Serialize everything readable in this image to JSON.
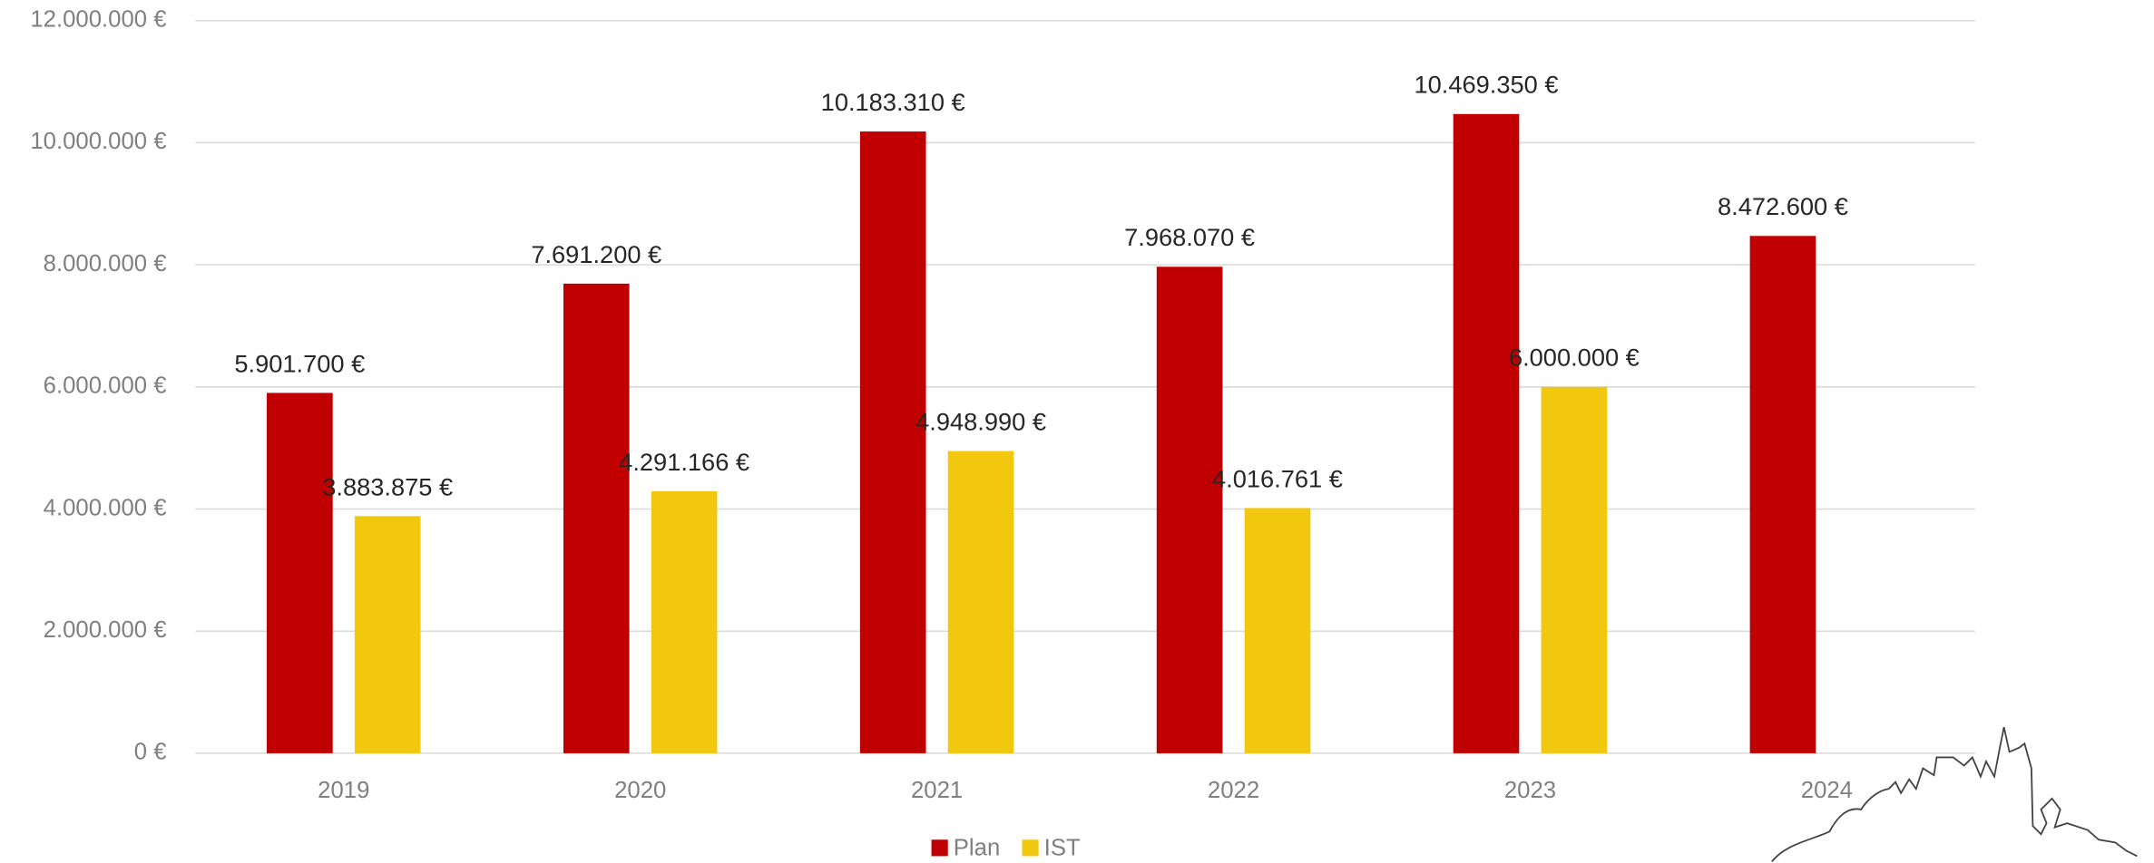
{
  "chart_data": {
    "type": "bar",
    "categories": [
      "2019",
      "2020",
      "2021",
      "2022",
      "2023",
      "2024"
    ],
    "series": [
      {
        "name": "Plan",
        "color": "#c00000",
        "values": [
          5901700,
          7691200,
          10183310,
          7968070,
          10469350,
          8472600
        ],
        "value_labels": [
          "5.901.700 €",
          "7.691.200 €",
          "10.183.310 €",
          "7.968.070 €",
          "10.469.350 €",
          "8.472.600 €"
        ]
      },
      {
        "name": "IST",
        "color": "#f2c80f",
        "values": [
          3883875,
          4291166,
          4948990,
          4016761,
          6000000,
          null
        ],
        "value_labels": [
          "3.883.875 €",
          "4.291.166 €",
          "4.948.990 €",
          "4.016.761 €",
          "6.000.000 €",
          null
        ]
      }
    ],
    "ylim": [
      0,
      12000000
    ],
    "yticks": [
      {
        "value": 0,
        "label": "0 €"
      },
      {
        "value": 2000000,
        "label": "2.000.000 €"
      },
      {
        "value": 4000000,
        "label": "4.000.000 €"
      },
      {
        "value": 6000000,
        "label": "6.000.000 €"
      },
      {
        "value": 8000000,
        "label": "8.000.000 €"
      },
      {
        "value": 10000000,
        "label": "10.000.000 €"
      },
      {
        "value": 12000000,
        "label": "12.000.000 €"
      }
    ],
    "grid": true,
    "legend": "bottom"
  }
}
